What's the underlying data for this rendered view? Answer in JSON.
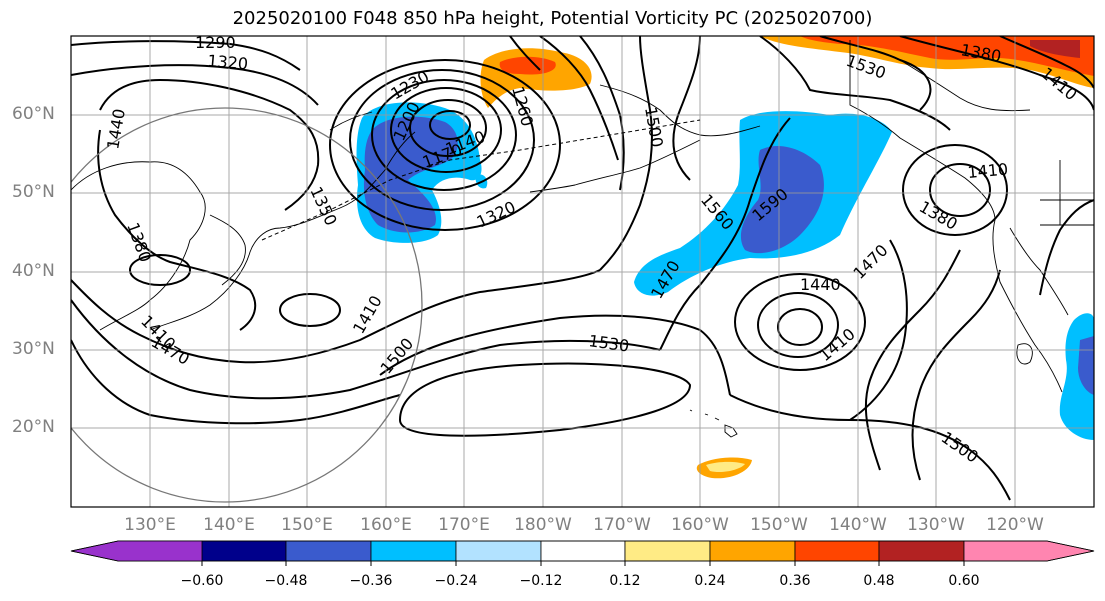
{
  "title": "2025020100 F048 850 hPa height, Potential Vorticity PC (2025020700)",
  "lat_labels": [
    "60°N",
    "50°N",
    "40°N",
    "30°N",
    "20°N"
  ],
  "lon_labels": [
    "130°E",
    "140°E",
    "150°E",
    "160°E",
    "170°E",
    "180°W",
    "170°W",
    "160°W",
    "150°W",
    "140°W",
    "130°W",
    "120°W"
  ],
  "contour_labels": [
    "1290",
    "1320",
    "1440",
    "1380",
    "1350",
    "1410",
    "1470",
    "1500",
    "1230",
    "1260",
    "1200",
    "1140",
    "1170",
    "1320",
    "1410",
    "1500",
    "1530",
    "1560",
    "1590",
    "1470",
    "1440",
    "1410",
    "1470",
    "1380",
    "1410",
    "1500",
    "1530",
    "1410",
    "1380"
  ],
  "colorbar": {
    "ticks": [
      "−0.60",
      "−0.48",
      "−0.36",
      "−0.24",
      "−0.12",
      "0.12",
      "0.24",
      "0.36",
      "0.48",
      "0.60"
    ],
    "colors": [
      "#9932cc",
      "#00008b",
      "#3a5bcd",
      "#00bfff",
      "#b2e2ff",
      "#ffffff",
      "#ffeb85",
      "#ffa500",
      "#ff4500",
      "#b22222",
      "#ff85b0"
    ]
  }
}
